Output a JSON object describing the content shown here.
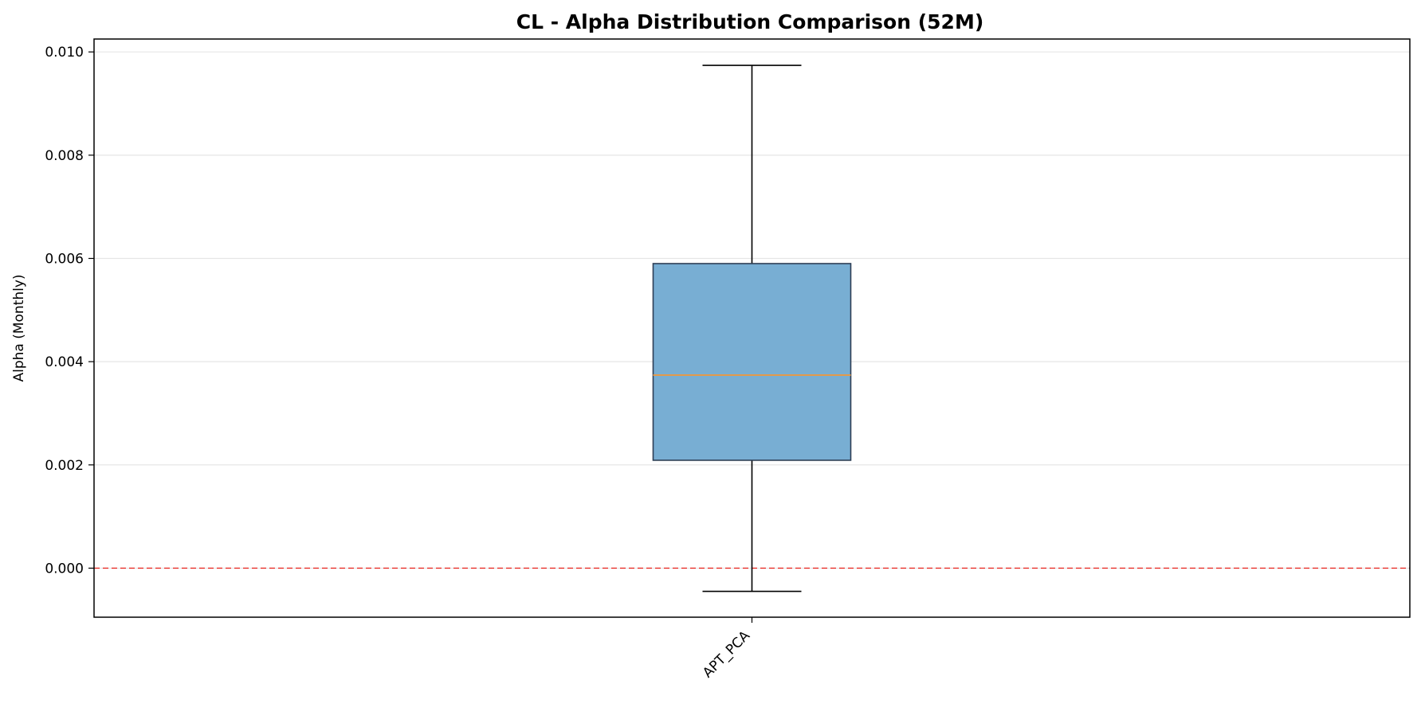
{
  "chart_data": {
    "type": "box",
    "title": "CL - Alpha Distribution Comparison (52M)",
    "xlabel": "",
    "ylabel": "Alpha (Monthly)",
    "categories": [
      "APT_PCA"
    ],
    "boxes": [
      {
        "category": "APT_PCA",
        "whisker_low": -0.00045,
        "q1": 0.00209,
        "median": 0.00374,
        "q3": 0.0059,
        "whisker_high": 0.00974
      }
    ],
    "ylim": [
      -0.00095,
      0.01025
    ],
    "yticks": [
      0.0,
      0.002,
      0.004,
      0.006,
      0.008,
      0.01
    ],
    "ytick_labels": [
      "0.000",
      "0.002",
      "0.004",
      "0.006",
      "0.008",
      "0.010"
    ],
    "grid": "horizontal",
    "reference_line": {
      "y": 0,
      "style": "dashed",
      "color": "#e8302b"
    },
    "colors": {
      "box_fill": "#78aed3",
      "box_edge": "#2d3e55",
      "median": "#e39a4a",
      "whisker": "#000000",
      "grid": "#e6e6e6"
    }
  }
}
